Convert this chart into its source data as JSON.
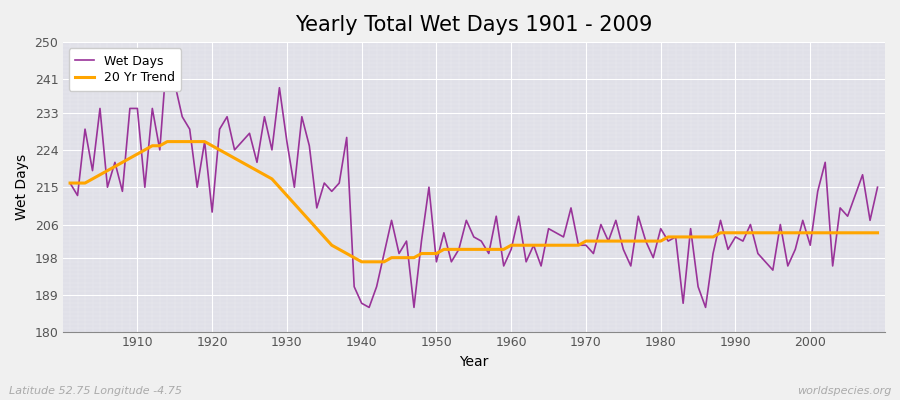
{
  "title": "Yearly Total Wet Days 1901 - 2009",
  "xlabel": "Year",
  "ylabel": "Wet Days",
  "years": [
    1901,
    1902,
    1903,
    1904,
    1905,
    1906,
    1907,
    1908,
    1909,
    1910,
    1911,
    1912,
    1913,
    1914,
    1915,
    1916,
    1917,
    1918,
    1919,
    1920,
    1921,
    1922,
    1923,
    1924,
    1925,
    1926,
    1927,
    1928,
    1929,
    1930,
    1931,
    1932,
    1933,
    1934,
    1935,
    1936,
    1937,
    1938,
    1939,
    1940,
    1941,
    1942,
    1943,
    1944,
    1945,
    1946,
    1947,
    1948,
    1949,
    1950,
    1951,
    1952,
    1953,
    1954,
    1955,
    1956,
    1957,
    1958,
    1959,
    1960,
    1961,
    1962,
    1963,
    1964,
    1965,
    1966,
    1967,
    1968,
    1969,
    1970,
    1971,
    1972,
    1973,
    1974,
    1975,
    1976,
    1977,
    1978,
    1979,
    1980,
    1981,
    1982,
    1983,
    1984,
    1985,
    1986,
    1987,
    1988,
    1989,
    1990,
    1991,
    1992,
    1993,
    1994,
    1995,
    1996,
    1997,
    1998,
    1999,
    2000,
    2001,
    2002,
    2003,
    2004,
    2005,
    2006,
    2007,
    2008,
    2009
  ],
  "wet_days": [
    216,
    213,
    229,
    219,
    234,
    215,
    221,
    214,
    234,
    234,
    215,
    234,
    224,
    248,
    240,
    232,
    229,
    215,
    226,
    209,
    229,
    232,
    224,
    226,
    228,
    221,
    232,
    224,
    239,
    226,
    215,
    232,
    225,
    210,
    216,
    214,
    216,
    227,
    191,
    187,
    186,
    191,
    199,
    207,
    199,
    202,
    186,
    202,
    215,
    197,
    204,
    197,
    200,
    207,
    203,
    202,
    199,
    208,
    196,
    200,
    208,
    197,
    201,
    196,
    205,
    204,
    203,
    210,
    201,
    201,
    199,
    206,
    202,
    207,
    200,
    196,
    208,
    202,
    198,
    205,
    202,
    203,
    187,
    205,
    191,
    186,
    199,
    207,
    200,
    203,
    202,
    206,
    199,
    197,
    195,
    206,
    196,
    200,
    207,
    201,
    214,
    221,
    196,
    210,
    208,
    213,
    218,
    207,
    215
  ],
  "trend": [
    216,
    216,
    216,
    217,
    218,
    219,
    220,
    221,
    222,
    223,
    224,
    225,
    225,
    226,
    226,
    226,
    226,
    226,
    226,
    225,
    224,
    223,
    222,
    221,
    220,
    219,
    218,
    217,
    215,
    213,
    211,
    209,
    207,
    205,
    203,
    201,
    200,
    199,
    198,
    197,
    197,
    197,
    197,
    198,
    198,
    198,
    198,
    199,
    199,
    199,
    200,
    200,
    200,
    200,
    200,
    200,
    200,
    200,
    200,
    201,
    201,
    201,
    201,
    201,
    201,
    201,
    201,
    201,
    201,
    202,
    202,
    202,
    202,
    202,
    202,
    202,
    202,
    202,
    202,
    202,
    203,
    203,
    203,
    203,
    203,
    203,
    203,
    204,
    204,
    204,
    204,
    204,
    204,
    204,
    204,
    204,
    204,
    204,
    204,
    204,
    204,
    204,
    204,
    204,
    204,
    204,
    204,
    204,
    204
  ],
  "wet_color": "#993399",
  "trend_color": "#FFA500",
  "bg_color": "#f0f0f0",
  "plot_bg_color": "#e0e0e8",
  "ylim": [
    180,
    250
  ],
  "yticks": [
    180,
    189,
    198,
    206,
    215,
    224,
    233,
    241,
    250
  ],
  "xticks": [
    1910,
    1920,
    1930,
    1940,
    1950,
    1960,
    1970,
    1980,
    1990,
    2000
  ],
  "xlim": [
    1900,
    2010
  ],
  "title_fontsize": 15,
  "axis_fontsize": 10,
  "tick_fontsize": 9,
  "legend_fontsize": 9,
  "watermark": "worldspecies.org",
  "subtitle": "Latitude 52.75 Longitude -4.75"
}
